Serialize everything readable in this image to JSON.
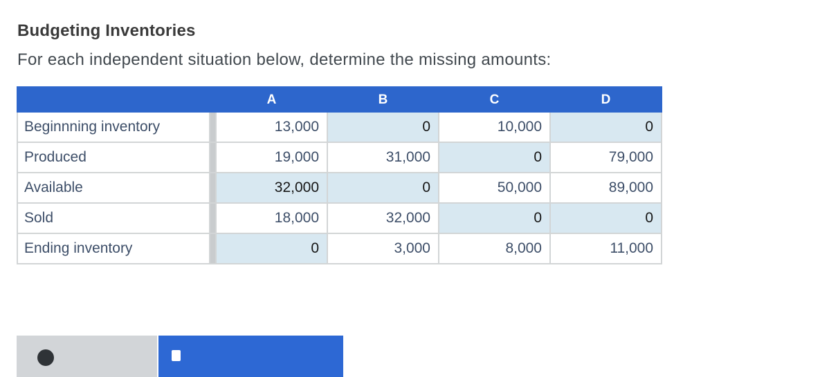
{
  "page": {
    "title": "Budgeting Inventories",
    "subtitle": "For each independent situation below, determine the missing amounts:"
  },
  "table": {
    "columns": [
      "A",
      "B",
      "C",
      "D"
    ],
    "rows": [
      {
        "label": "Beginnning inventory",
        "values": [
          "13,000",
          "0",
          "10,000",
          "0"
        ],
        "highlight": [
          false,
          true,
          false,
          true
        ]
      },
      {
        "label": "Produced",
        "values": [
          "19,000",
          "31,000",
          "0",
          "79,000"
        ],
        "highlight": [
          false,
          false,
          true,
          false
        ]
      },
      {
        "label": "Available",
        "values": [
          "32,000",
          "0",
          "50,000",
          "89,000"
        ],
        "highlight": [
          true,
          true,
          false,
          false
        ]
      },
      {
        "label": "Sold",
        "values": [
          "18,000",
          "32,000",
          "0",
          "0"
        ],
        "highlight": [
          false,
          false,
          true,
          true
        ]
      },
      {
        "label": "Ending inventory",
        "values": [
          "0",
          "3,000",
          "8,000",
          "11,000"
        ],
        "highlight": [
          true,
          false,
          false,
          false
        ]
      }
    ]
  },
  "colors": {
    "header_blue": "#2d66cc",
    "cell_highlight_blue": "#d8e8f1",
    "text_navy": "#3d4e68",
    "entered_value_black": "#161616",
    "separator_gray": "#c9ccce",
    "footer_button_gray": "#d2d5d8",
    "footer_button_blue": "#2d68d4"
  }
}
